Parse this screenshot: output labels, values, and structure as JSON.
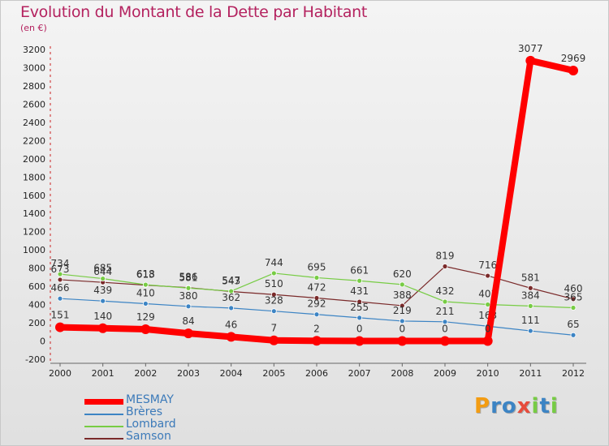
{
  "header": {
    "title": "Evolution du Montant de la Dette par Habitant",
    "subtitle": "(en €)"
  },
  "chart_data": {
    "type": "line",
    "title": "Evolution du Montant de la Dette par Habitant",
    "ylabel": "(en €)",
    "xlabel": "",
    "ylim": [
      -200,
      3200
    ],
    "yticks": [
      -200,
      0,
      200,
      400,
      600,
      800,
      1000,
      1200,
      1400,
      1600,
      1800,
      2000,
      2200,
      2400,
      2600,
      2800,
      3000,
      3200
    ],
    "categories": [
      "2000",
      "2001",
      "2002",
      "2003",
      "2004",
      "2005",
      "2006",
      "2007",
      "2008",
      "2009",
      "2010",
      "2011",
      "2012"
    ],
    "series": [
      {
        "name": "Samson",
        "color": "#7a2a2a",
        "values": [
          673,
          644,
          613,
          586,
          543,
          510,
          472,
          431,
          388,
          819,
          716,
          581,
          460
        ]
      },
      {
        "name": "Lombard",
        "color": "#77cc44",
        "values": [
          734,
          685,
          618,
          581,
          547,
          744,
          695,
          661,
          620,
          432,
          401,
          384,
          365
        ]
      },
      {
        "name": "Brères",
        "color": "#3c84c4",
        "values": [
          466,
          439,
          410,
          380,
          362,
          328,
          292,
          255,
          219,
          211,
          163,
          111,
          65
        ]
      },
      {
        "name": "MESMAY",
        "color": "#ff0000",
        "values": [
          151,
          140,
          129,
          84,
          46,
          7,
          2,
          0,
          0,
          0,
          0,
          3077,
          2969
        ]
      }
    ],
    "legend": [
      "MESMAY",
      "Brères",
      "Lombard",
      "Samson"
    ],
    "grid": false
  },
  "logo": {
    "letters": [
      "P",
      "r",
      "o",
      "x",
      "i",
      "t",
      "i"
    ],
    "colors": [
      "#f39c12",
      "#3c84c4",
      "#3c84c4",
      "#e74c3c",
      "#77cc44",
      "#3c84c4",
      "#77cc44"
    ]
  }
}
